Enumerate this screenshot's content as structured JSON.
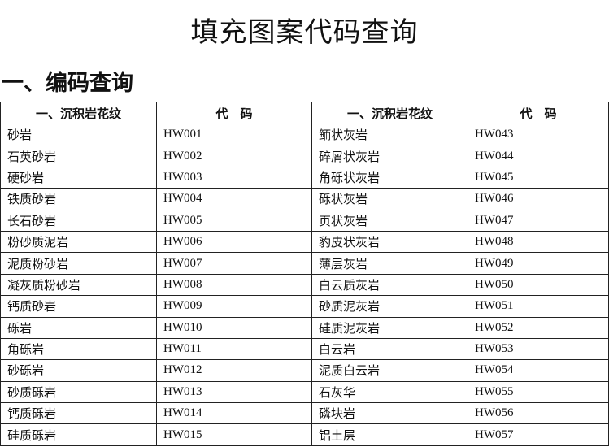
{
  "title": "填充图案代码查询",
  "section_heading": "一、编码查询",
  "table": {
    "headers": [
      "一、沉积岩花纹",
      "代　码",
      "一、沉积岩花纹",
      "代　码"
    ],
    "rows": [
      [
        "砂岩",
        "HW001",
        "鲕状灰岩",
        "HW043"
      ],
      [
        "石英砂岩",
        "HW002",
        "碎屑状灰岩",
        "HW044"
      ],
      [
        "硬砂岩",
        "HW003",
        "角砾状灰岩",
        "HW045"
      ],
      [
        "铁质砂岩",
        "HW004",
        "砾状灰岩",
        "HW046"
      ],
      [
        "长石砂岩",
        "HW005",
        "页状灰岩",
        "HW047"
      ],
      [
        "粉砂质泥岩",
        "HW006",
        "豹皮状灰岩",
        "HW048"
      ],
      [
        "泥质粉砂岩",
        "HW007",
        "薄层灰岩",
        "HW049"
      ],
      [
        "凝灰质粉砂岩",
        "HW008",
        "白云质灰岩",
        "HW050"
      ],
      [
        "钙质砂岩",
        "HW009",
        "砂质泥灰岩",
        "HW051"
      ],
      [
        "砾岩",
        "HW010",
        "硅质泥灰岩",
        "HW052"
      ],
      [
        "角砾岩",
        "HW011",
        "白云岩",
        "HW053"
      ],
      [
        "砂砾岩",
        "HW012",
        "泥质白云岩",
        "HW054"
      ],
      [
        "砂质砾岩",
        "HW013",
        "石灰华",
        "HW055"
      ],
      [
        "钙质砾岩",
        "HW014",
        "磷块岩",
        "HW056"
      ],
      [
        "硅质砾岩",
        "HW015",
        "铝土层",
        "HW057"
      ]
    ]
  }
}
